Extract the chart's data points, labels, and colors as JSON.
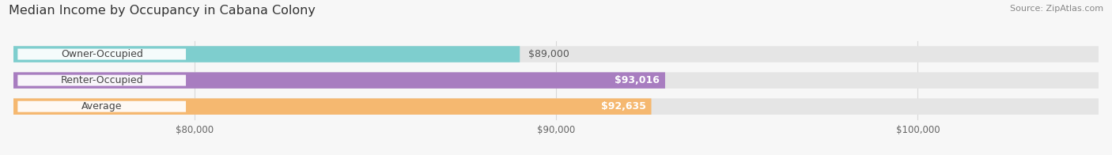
{
  "title": "Median Income by Occupancy in Cabana Colony",
  "source": "Source: ZipAtlas.com",
  "categories": [
    "Owner-Occupied",
    "Renter-Occupied",
    "Average"
  ],
  "values": [
    89000,
    93016,
    92635
  ],
  "labels": [
    "$89,000",
    "$93,016",
    "$92,635"
  ],
  "label_colors": [
    "#555555",
    "#ffffff",
    "#ffffff"
  ],
  "label_inside": [
    false,
    true,
    true
  ],
  "bar_colors": [
    "#7ecece",
    "#a87dc0",
    "#f5b870"
  ],
  "bar_bg_color": "#e5e5e5",
  "xlim_min": 75000,
  "xlim_max": 105000,
  "xticks": [
    80000,
    90000,
    100000
  ],
  "xtick_labels": [
    "$80,000",
    "$90,000",
    "$100,000"
  ],
  "title_fontsize": 11.5,
  "label_fontsize": 9,
  "source_fontsize": 8,
  "bar_height": 0.62,
  "background_color": "#f7f7f7",
  "pill_color": "#ffffff",
  "pill_text_color": "#444444",
  "grid_color": "#d8d8d8"
}
